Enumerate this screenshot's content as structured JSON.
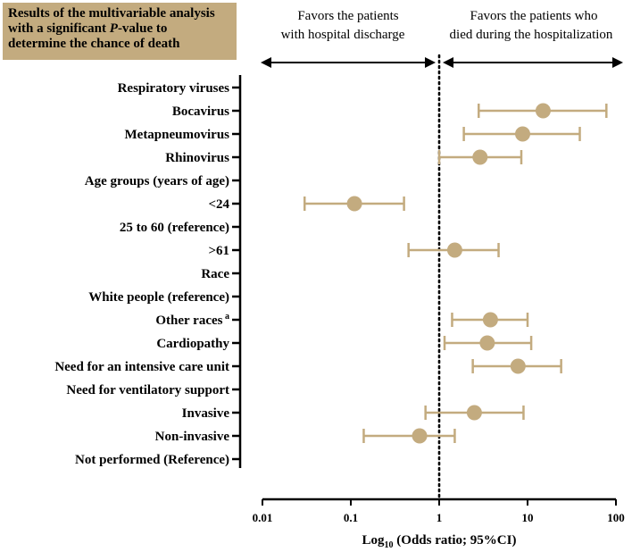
{
  "title": {
    "line1": "Results of the multivariable analysis",
    "line2_prefix": "with a significant ",
    "line2_italic": "P",
    "line2_suffix": "-value to",
    "line3": "determine the chance of death"
  },
  "colors": {
    "title_bg": "#c3ab7f",
    "marker": "#c3ab7f",
    "axis": "#000000"
  },
  "chart_data": {
    "type": "forest",
    "scale": "log10",
    "xlim": [
      0.01,
      100
    ],
    "xticks": [
      0.01,
      0.1,
      1,
      10,
      100
    ],
    "xtick_labels": [
      "0.01",
      "0.1",
      "1",
      "10",
      "100"
    ],
    "reference_line": 1,
    "xlabel_prefix": "Log",
    "xlabel_sub": "10",
    "xlabel_suffix": " (Odds ratio; 95%CI)",
    "favors_left": [
      "Favors the patients",
      "with hospital discharge"
    ],
    "favors_right": [
      "Favors the patients who",
      "died during the hospitalization"
    ],
    "rows": [
      {
        "label": "Respiratory viruses"
      },
      {
        "label": "Bocavirus",
        "or": 15,
        "lo": 2.8,
        "hi": 78
      },
      {
        "label": "Metapneumovirus",
        "or": 8.8,
        "lo": 1.9,
        "hi": 39
      },
      {
        "label": "Rhinovirus",
        "or": 2.9,
        "lo": 1.0,
        "hi": 8.5
      },
      {
        "label": "Age groups (years of age)"
      },
      {
        "label": "<24",
        "or": 0.11,
        "lo": 0.03,
        "hi": 0.4
      },
      {
        "label": "25 to 60 (reference)"
      },
      {
        "label": ">61",
        "or": 1.5,
        "lo": 0.45,
        "hi": 4.7
      },
      {
        "label": "Race"
      },
      {
        "label": "White people (reference)"
      },
      {
        "label": "Other races",
        "sup": "a",
        "or": 3.8,
        "lo": 1.4,
        "hi": 10
      },
      {
        "label": "Cardiopathy",
        "or": 3.5,
        "lo": 1.15,
        "hi": 11
      },
      {
        "label": "Need for an intensive care unit",
        "or": 7.8,
        "lo": 2.4,
        "hi": 24
      },
      {
        "label": "Need for ventilatory support"
      },
      {
        "label": "Invasive",
        "or": 2.5,
        "lo": 0.7,
        "hi": 9
      },
      {
        "label": "Non-invasive",
        "or": 0.6,
        "lo": 0.14,
        "hi": 1.5
      },
      {
        "label": "Not performed (Reference)"
      }
    ]
  }
}
